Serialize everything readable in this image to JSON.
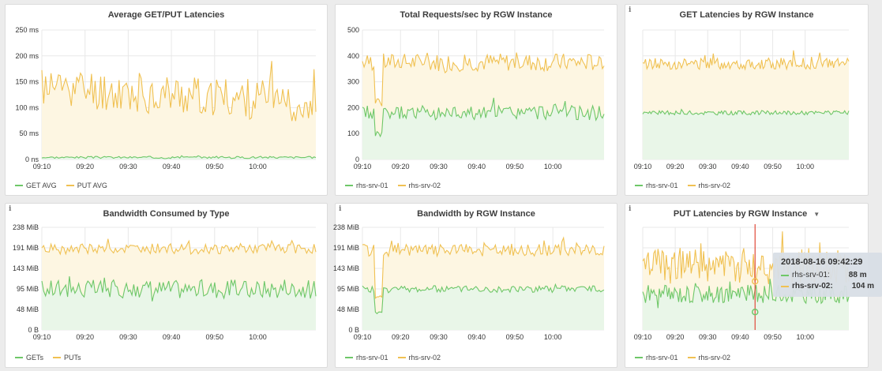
{
  "colors": {
    "get": "#6ec768",
    "put": "#f0c152",
    "get_fill": "#e9f6e8",
    "put_fill": "#fdf6e2",
    "grid": "#e8e8e8",
    "axis": "#333333",
    "marker": "#e04a3a"
  },
  "panels": [
    {
      "title": "Average GET/PUT Latencies",
      "info": false,
      "menu": false,
      "legend": [
        "GET AVG",
        "PUT AVG"
      ],
      "chart_data": {
        "type": "area",
        "x_ticks": [
          "09:10",
          "09:20",
          "09:30",
          "09:40",
          "09:50",
          "10:00"
        ],
        "y_ticks": [
          "0 ns",
          "50 ms",
          "100 ms",
          "150 ms",
          "200 ms",
          "250 ms"
        ],
        "ylim": [
          0,
          250
        ],
        "series": [
          {
            "name": "GET AVG",
            "base": 4,
            "noise": 2,
            "seed": 3
          },
          {
            "name": "PUT AVG",
            "base": 140,
            "noise": 40,
            "seed": 11,
            "trend": -30
          }
        ]
      }
    },
    {
      "title": "Total Requests/sec by RGW Instance",
      "info": false,
      "menu": false,
      "legend": [
        "rhs-srv-01",
        "rhs-srv-02"
      ],
      "chart_data": {
        "type": "area",
        "x_ticks": [
          "09:10",
          "09:20",
          "09:30",
          "09:40",
          "09:50",
          "10:00"
        ],
        "y_ticks": [
          "0",
          "100",
          "200",
          "300",
          "400",
          "500"
        ],
        "ylim": [
          0,
          500
        ],
        "series": [
          {
            "name": "rhs-srv-01",
            "base": 180,
            "noise": 28,
            "seed": 5,
            "dip": 85
          },
          {
            "name": "rhs-srv-02",
            "base": 375,
            "noise": 35,
            "seed": 7,
            "dip": 200
          }
        ]
      }
    },
    {
      "title": "GET Latencies by RGW Instance",
      "info": true,
      "menu": false,
      "legend": [
        "rhs-srv-01",
        "rhs-srv-02"
      ],
      "chart_data": {
        "type": "area",
        "x_ticks": [
          "09:10",
          "09:20",
          "09:30",
          "09:40",
          "09:50",
          "10:00"
        ],
        "y_ticks": [],
        "ylim": [
          0,
          500
        ],
        "series": [
          {
            "name": "rhs-srv-01",
            "base": 180,
            "noise": 8,
            "seed": 9
          },
          {
            "name": "rhs-srv-02",
            "base": 370,
            "noise": 22,
            "seed": 13
          }
        ]
      }
    },
    {
      "title": "Bandwidth Consumed by Type",
      "info": true,
      "menu": false,
      "legend": [
        "GETs",
        "PUTs"
      ],
      "chart_data": {
        "type": "area",
        "x_ticks": [
          "09:10",
          "09:20",
          "09:30",
          "09:40",
          "09:50",
          "10:00"
        ],
        "y_ticks": [
          "0 B",
          "48 MiB",
          "95 MiB",
          "143 MiB",
          "191 MiB",
          "238 MiB"
        ],
        "ylim": [
          0,
          238
        ],
        "series": [
          {
            "name": "GETs",
            "base": 95,
            "noise": 22,
            "seed": 17
          },
          {
            "name": "PUTs",
            "base": 188,
            "noise": 12,
            "seed": 19
          }
        ]
      }
    },
    {
      "title": "Bandwidth by RGW Instance",
      "info": true,
      "menu": false,
      "legend": [
        "rhs-srv-01",
        "rhs-srv-02"
      ],
      "chart_data": {
        "type": "area",
        "x_ticks": [
          "09:10",
          "09:20",
          "09:30",
          "09:40",
          "09:50",
          "10:00"
        ],
        "y_ticks": [
          "0 B",
          "48 MiB",
          "95 MiB",
          "143 MiB",
          "191 MiB",
          "238 MiB"
        ],
        "ylim": [
          0,
          238
        ],
        "series": [
          {
            "name": "rhs-srv-01",
            "base": 95,
            "noise": 8,
            "seed": 23,
            "dip": 35
          },
          {
            "name": "rhs-srv-02",
            "base": 185,
            "noise": 14,
            "seed": 29,
            "dip": 70
          }
        ]
      }
    },
    {
      "title": "PUT Latencies by RGW Instance",
      "info": true,
      "menu": true,
      "legend": [
        "rhs-srv-01",
        "rhs-srv-02"
      ],
      "chart_data": {
        "type": "area",
        "x_ticks": [
          "09:10",
          "09:20",
          "09:30",
          "09:40",
          "09:50",
          "10:00"
        ],
        "y_ticks": [],
        "ylim": [
          0,
          200
        ],
        "series": [
          {
            "name": "rhs-srv-01",
            "base": 70,
            "noise": 18,
            "seed": 31
          },
          {
            "name": "rhs-srv-02",
            "base": 125,
            "noise": 35,
            "seed": 37
          }
        ]
      },
      "tooltip": {
        "time": "2018-08-16 09:42:29",
        "rows": [
          {
            "name": "rhs-srv-01:",
            "value": "88 m"
          },
          {
            "name": "rhs-srv-02:",
            "value": "104 m"
          }
        ]
      }
    }
  ]
}
